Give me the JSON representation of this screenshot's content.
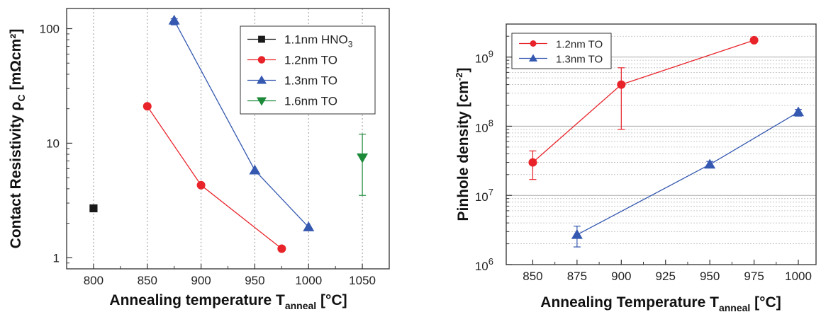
{
  "colors": {
    "red": "#e8232a",
    "blue": "#3558b0",
    "black": "#1a1a1a",
    "green": "#1d8a3a"
  },
  "chart_data": [
    {
      "type": "scatter",
      "ylabel_main": "Contact Resistivity ρ",
      "ylabel_sub": "C",
      "ylabel_unit": " [mΩcm²]",
      "xlabel_main": "Annealing temperature T",
      "xlabel_sub": "anneal",
      "xlabel_unit": " [°C]",
      "xlim": [
        775,
        1075
      ],
      "ylim": [
        0.8,
        150
      ],
      "yscale": "log",
      "xgrid": "vertical dotted at each x tick",
      "xticks": [
        "800",
        "850",
        "900",
        "950",
        "1000",
        "1050"
      ],
      "yticks": [
        "1",
        "10",
        "100"
      ],
      "legend": [
        {
          "label": "1.1nm HNO",
          "sub": "3",
          "series": 0
        },
        {
          "label": "1.2nm TO",
          "sub": "",
          "series": 1
        },
        {
          "label": "1.3nm TO",
          "sub": "",
          "series": 2
        },
        {
          "label": "1.6nm TO",
          "sub": "",
          "series": 3
        }
      ],
      "legend_position": "top-right",
      "series": [
        {
          "name": "1.1nm HNO3",
          "marker": "square",
          "color": "#1a1a1a",
          "line": false,
          "points": [
            {
              "x": 800,
              "y": 2.7
            }
          ]
        },
        {
          "name": "1.2nm TO",
          "marker": "circle",
          "color": "#e8232a",
          "line": true,
          "points": [
            {
              "x": 850,
              "y": 21
            },
            {
              "x": 900,
              "y": 4.3
            },
            {
              "x": 975,
              "y": 1.2
            }
          ]
        },
        {
          "name": "1.3nm TO",
          "marker": "triangle-up",
          "color": "#3558b0",
          "line": true,
          "points": [
            {
              "x": 875,
              "y": 118,
              "err_low": 108,
              "err_high": 122
            },
            {
              "x": 950,
              "y": 5.8
            },
            {
              "x": 1000,
              "y": 1.85
            }
          ]
        },
        {
          "name": "1.6nm TO",
          "marker": "triangle-down",
          "color": "#1d8a3a",
          "line": false,
          "points": [
            {
              "x": 1050,
              "y": 7.5,
              "err_low": 3.5,
              "err_high": 12
            }
          ]
        }
      ]
    },
    {
      "type": "scatter",
      "ylabel_main": "Pinhole density [cm",
      "ylabel_sup": "-2",
      "ylabel_unit": "]",
      "xlabel_main": "Annealing Temperature T",
      "xlabel_sub": "anneal",
      "xlabel_unit": " [°C]",
      "xlim": [
        835,
        1010
      ],
      "ylim": [
        1000000,
        3000000000
      ],
      "yscale": "log",
      "ygrid": "horizontal dotted minor, solid major",
      "xticks": [
        "850",
        "875",
        "900",
        "925",
        "950",
        "975",
        "1000"
      ],
      "yticks": [
        {
          "base": "10",
          "exp": "6"
        },
        {
          "base": "10",
          "exp": "7"
        },
        {
          "base": "10",
          "exp": "8"
        },
        {
          "base": "10",
          "exp": "9"
        }
      ],
      "legend": [
        {
          "label": "1.2nm TO",
          "series": 0
        },
        {
          "label": "1.3nm TO",
          "series": 1
        }
      ],
      "legend_position": "top-left",
      "series": [
        {
          "name": "1.2nm TO",
          "marker": "circle",
          "color": "#e8232a",
          "line": true,
          "points": [
            {
              "x": 850,
              "y": 30000000,
              "err_low": 17000000,
              "err_high": 44000000
            },
            {
              "x": 900,
              "y": 400000000,
              "err_low": 90000000,
              "err_high": 700000000
            },
            {
              "x": 975,
              "y": 1750000000
            }
          ]
        },
        {
          "name": "1.3nm TO",
          "marker": "triangle-up",
          "color": "#3558b0",
          "line": true,
          "points": [
            {
              "x": 875,
              "y": 2700000,
              "err_low": 1800000,
              "err_high": 3600000
            },
            {
              "x": 950,
              "y": 28000000,
              "err_low": 25000000,
              "err_high": 31000000
            },
            {
              "x": 1000,
              "y": 160000000,
              "err_low": 140000000,
              "err_high": 175000000
            }
          ]
        }
      ]
    }
  ]
}
